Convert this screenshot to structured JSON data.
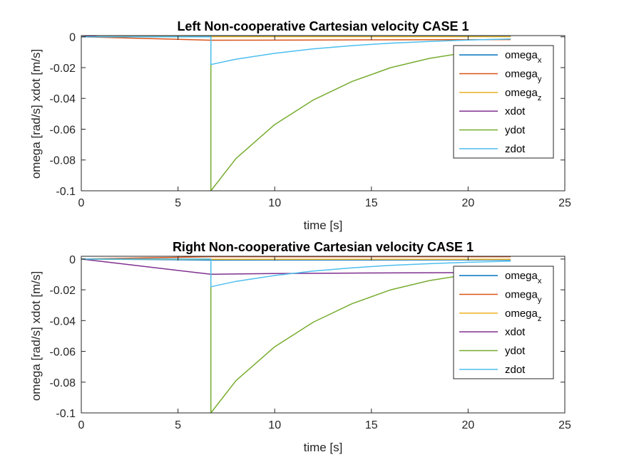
{
  "colors": {
    "omega_x": "#0072BD",
    "omega_y": "#D95319",
    "omega_z": "#EDB120",
    "xdot": "#7E2F8E",
    "ydot": "#77AC30",
    "zdot": "#4DBEEE",
    "axes": "#262626"
  },
  "chart_data": [
    {
      "type": "line",
      "title": "Left Non-cooperative Cartesian velocity CASE 1",
      "xlabel": "time [s]",
      "ylabel": "omega [rad/s] xdot [m/s]",
      "xlim": [
        0,
        25
      ],
      "ylim": [
        -0.1,
        0.0008
      ],
      "xticks": [
        0,
        5,
        10,
        15,
        20,
        25
      ],
      "yticks": [
        0,
        -0.02,
        -0.04,
        -0.06,
        -0.08,
        -0.1
      ],
      "legend_position": "top-right",
      "grid": false,
      "series": [
        {
          "name": "omega_x",
          "label_base": "omega",
          "label_sub": "x",
          "color_key": "omega_x",
          "x": [
            0,
            6.7,
            22.2
          ],
          "y": [
            0,
            0.0002,
            0.0002
          ]
        },
        {
          "name": "omega_y",
          "label_base": "omega",
          "label_sub": "y",
          "color_key": "omega_y",
          "x": [
            0,
            6.7,
            22.2
          ],
          "y": [
            0,
            -0.0022,
            -0.0018
          ]
        },
        {
          "name": "omega_z",
          "label_base": "omega",
          "label_sub": "z",
          "color_key": "omega_z",
          "x": [
            0,
            6.7,
            22.2
          ],
          "y": [
            0,
            0.0001,
            0.0001
          ]
        },
        {
          "name": "xdot",
          "label_base": "xdot",
          "label_sub": "",
          "color_key": "xdot",
          "x": [
            0,
            6.7,
            9,
            12,
            15,
            18,
            22.2
          ],
          "y": [
            0,
            0.0066,
            0.0072,
            0.0076,
            0.0078,
            0.0079,
            0.008
          ]
        },
        {
          "name": "ydot",
          "label_base": "ydot",
          "label_sub": "",
          "color_key": "ydot",
          "x": [
            0,
            6.7,
            6.7,
            8,
            10,
            12,
            14,
            16,
            18,
            20,
            22.2
          ],
          "y": [
            0,
            0,
            -0.1,
            -0.079,
            -0.057,
            -0.041,
            -0.029,
            -0.02,
            -0.014,
            -0.01,
            -0.007
          ]
        },
        {
          "name": "zdot",
          "label_base": "zdot",
          "label_sub": "",
          "color_key": "zdot",
          "x": [
            0,
            6.7,
            6.7,
            8,
            10,
            12,
            14,
            16,
            18,
            20,
            22.2
          ],
          "y": [
            0,
            0,
            -0.018,
            -0.0145,
            -0.0107,
            -0.0078,
            -0.0057,
            -0.0041,
            -0.003,
            -0.0021,
            -0.0014
          ]
        }
      ]
    },
    {
      "type": "line",
      "title": "Right Non-cooperative Cartesian velocity CASE 1",
      "xlabel": "time [s]",
      "ylabel": "omega [rad/s] xdot [m/s]",
      "xlim": [
        0,
        25
      ],
      "ylim": [
        -0.1,
        0.0018
      ],
      "xticks": [
        0,
        5,
        10,
        15,
        20,
        25
      ],
      "yticks": [
        0,
        -0.02,
        -0.04,
        -0.06,
        -0.08,
        -0.1
      ],
      "legend_position": "top-right",
      "grid": false,
      "series": [
        {
          "name": "omega_x",
          "label_base": "omega",
          "label_sub": "x",
          "color_key": "omega_x",
          "x": [
            0,
            6.7,
            22.2
          ],
          "y": [
            0,
            -0.0006,
            -0.0005
          ]
        },
        {
          "name": "omega_y",
          "label_base": "omega",
          "label_sub": "y",
          "color_key": "omega_y",
          "x": [
            0,
            6.7,
            22.2
          ],
          "y": [
            0,
            0.0015,
            0.0015
          ]
        },
        {
          "name": "omega_z",
          "label_base": "omega",
          "label_sub": "z",
          "color_key": "omega_z",
          "x": [
            0,
            6.7,
            22.2
          ],
          "y": [
            0,
            -0.0002,
            -0.0002
          ]
        },
        {
          "name": "xdot",
          "label_base": "xdot",
          "label_sub": "",
          "color_key": "xdot",
          "x": [
            0,
            6.7,
            10,
            14,
            18,
            22.2
          ],
          "y": [
            0,
            -0.0099,
            -0.0094,
            -0.0091,
            -0.0089,
            -0.0088
          ]
        },
        {
          "name": "ydot",
          "label_base": "ydot",
          "label_sub": "",
          "color_key": "ydot",
          "x": [
            0,
            6.7,
            6.7,
            8,
            10,
            12,
            14,
            16,
            18,
            20,
            22.2
          ],
          "y": [
            0,
            0,
            -0.1,
            -0.079,
            -0.057,
            -0.041,
            -0.029,
            -0.02,
            -0.014,
            -0.01,
            -0.007
          ]
        },
        {
          "name": "zdot",
          "label_base": "zdot",
          "label_sub": "",
          "color_key": "zdot",
          "x": [
            0,
            6.7,
            6.7,
            8,
            10,
            12,
            14,
            16,
            18,
            20,
            22.2
          ],
          "y": [
            0,
            0,
            -0.018,
            -0.0145,
            -0.0107,
            -0.0078,
            -0.0057,
            -0.0041,
            -0.003,
            -0.0021,
            -0.0014
          ]
        }
      ]
    }
  ]
}
